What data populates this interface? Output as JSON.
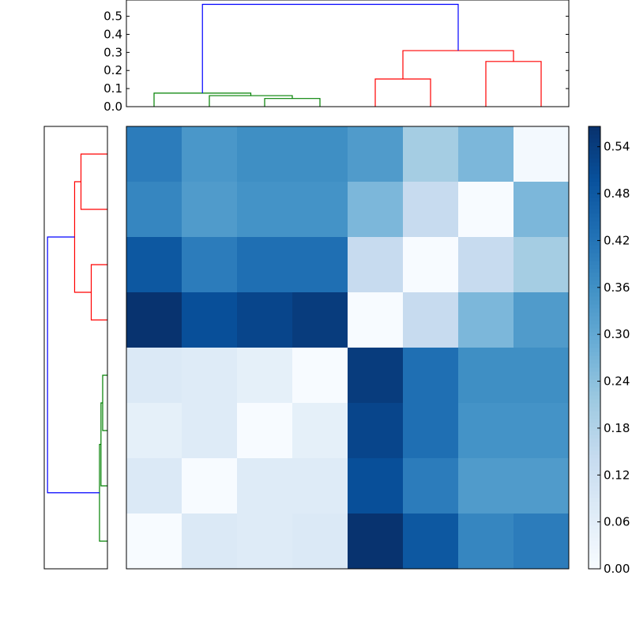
{
  "chart_data": [
    {
      "type": "heatmap",
      "rows": 8,
      "cols": 8,
      "colormap": "Blues",
      "values": [
        [
          0.4,
          0.34,
          0.36,
          0.36,
          0.33,
          0.2,
          0.26,
          0.01
        ],
        [
          0.38,
          0.33,
          0.35,
          0.35,
          0.26,
          0.14,
          0.0,
          0.26
        ],
        [
          0.48,
          0.4,
          0.43,
          0.43,
          0.14,
          0.0,
          0.14,
          0.2
        ],
        [
          0.56,
          0.5,
          0.52,
          0.54,
          0.0,
          0.14,
          0.26,
          0.33
        ],
        [
          0.08,
          0.07,
          0.05,
          0.0,
          0.54,
          0.43,
          0.36,
          0.36
        ],
        [
          0.05,
          0.07,
          0.0,
          0.05,
          0.52,
          0.43,
          0.35,
          0.35
        ],
        [
          0.08,
          0.0,
          0.07,
          0.07,
          0.5,
          0.4,
          0.33,
          0.33
        ],
        [
          0.0,
          0.08,
          0.07,
          0.08,
          0.56,
          0.48,
          0.38,
          0.4
        ]
      ],
      "vmin": 0.0,
      "vmax": 0.566,
      "colorbar": {
        "ticks": [
          "0.00",
          "0.06",
          "0.12",
          "0.18",
          "0.24",
          "0.30",
          "0.36",
          "0.42",
          "0.48",
          "0.54"
        ],
        "tick_values": [
          0,
          0.06,
          0.12,
          0.18,
          0.24,
          0.3,
          0.36,
          0.42,
          0.48,
          0.54
        ]
      }
    },
    {
      "type": "dendrogram",
      "orientation": "top",
      "ylim": [
        0,
        0.59
      ],
      "yticks": [
        "0.0",
        "0.1",
        "0.2",
        "0.3",
        "0.4",
        "0.5"
      ],
      "ytick_values": [
        0,
        0.1,
        0.2,
        0.3,
        0.4,
        0.5
      ],
      "colors": {
        "green": "#008000",
        "red": "#ff0000",
        "blue": "#0000ff"
      },
      "links": [
        {
          "x": [
            25,
            35
          ],
          "y": [
            0.0,
            0.0
          ],
          "h": 0.045,
          "color": "green"
        },
        {
          "x": [
            15,
            30
          ],
          "y": [
            0.0,
            0.045
          ],
          "h": 0.061,
          "color": "green"
        },
        {
          "x": [
            5,
            22.5
          ],
          "y": [
            0.0,
            0.061
          ],
          "h": 0.075,
          "color": "green"
        },
        {
          "x": [
            45,
            55
          ],
          "y": [
            0.0,
            0.0
          ],
          "h": 0.153,
          "color": "red"
        },
        {
          "x": [
            65,
            75
          ],
          "y": [
            0.0,
            0.0
          ],
          "h": 0.25,
          "color": "red"
        },
        {
          "x": [
            50,
            70
          ],
          "y": [
            0.153,
            0.25
          ],
          "h": 0.31,
          "color": "red"
        },
        {
          "x": [
            13.75,
            60
          ],
          "y": [
            0.075,
            0.31
          ],
          "h": 0.566,
          "color": "blue"
        }
      ]
    },
    {
      "type": "dendrogram",
      "orientation": "left",
      "note_same_linkage": true
    }
  ]
}
